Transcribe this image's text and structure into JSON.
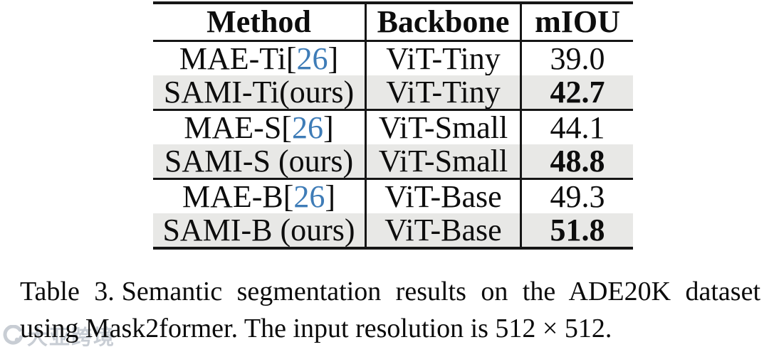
{
  "colors": {
    "citation_blue": "#3e7cb7",
    "row_shade": "#e8e8e6",
    "rule_black": "#161616",
    "watermark_gray": "#a7b0ba"
  },
  "table": {
    "headers": [
      "Method",
      "Backbone",
      "mIOU"
    ],
    "rows": [
      {
        "method": "MAE-Ti",
        "citation": "26",
        "backbone": "ViT-Tiny",
        "miou": "39.0",
        "emphasis": false,
        "shaded": false
      },
      {
        "method": "SAMI-Ti(ours)",
        "citation": null,
        "backbone": "ViT-Tiny",
        "miou": "42.7",
        "emphasis": true,
        "shaded": true
      },
      {
        "method": "MAE-S",
        "citation": "26",
        "backbone": "ViT-Small",
        "miou": "44.1",
        "emphasis": false,
        "shaded": false
      },
      {
        "method": "SAMI-S (ours)",
        "citation": null,
        "backbone": "ViT-Small",
        "miou": "48.8",
        "emphasis": true,
        "shaded": true
      },
      {
        "method": "MAE-B",
        "citation": "26",
        "backbone": "ViT-Base",
        "miou": "49.3",
        "emphasis": false,
        "shaded": false
      },
      {
        "method": "SAMI-B (ours)",
        "citation": null,
        "backbone": "ViT-Base",
        "miou": "51.8",
        "emphasis": true,
        "shaded": true
      }
    ],
    "group_separators_after_rows": [
      1,
      3
    ],
    "bracket_open": "[",
    "bracket_close": "]"
  },
  "caption": {
    "label": "Table 3.",
    "line1_rest": "Semantic segmentation results on the ADE20K dataset",
    "line2": "using Mask2former. The input resolution is 512 × 512."
  },
  "watermark": {
    "icon": "logo-ring",
    "text": "大亚跨境"
  }
}
